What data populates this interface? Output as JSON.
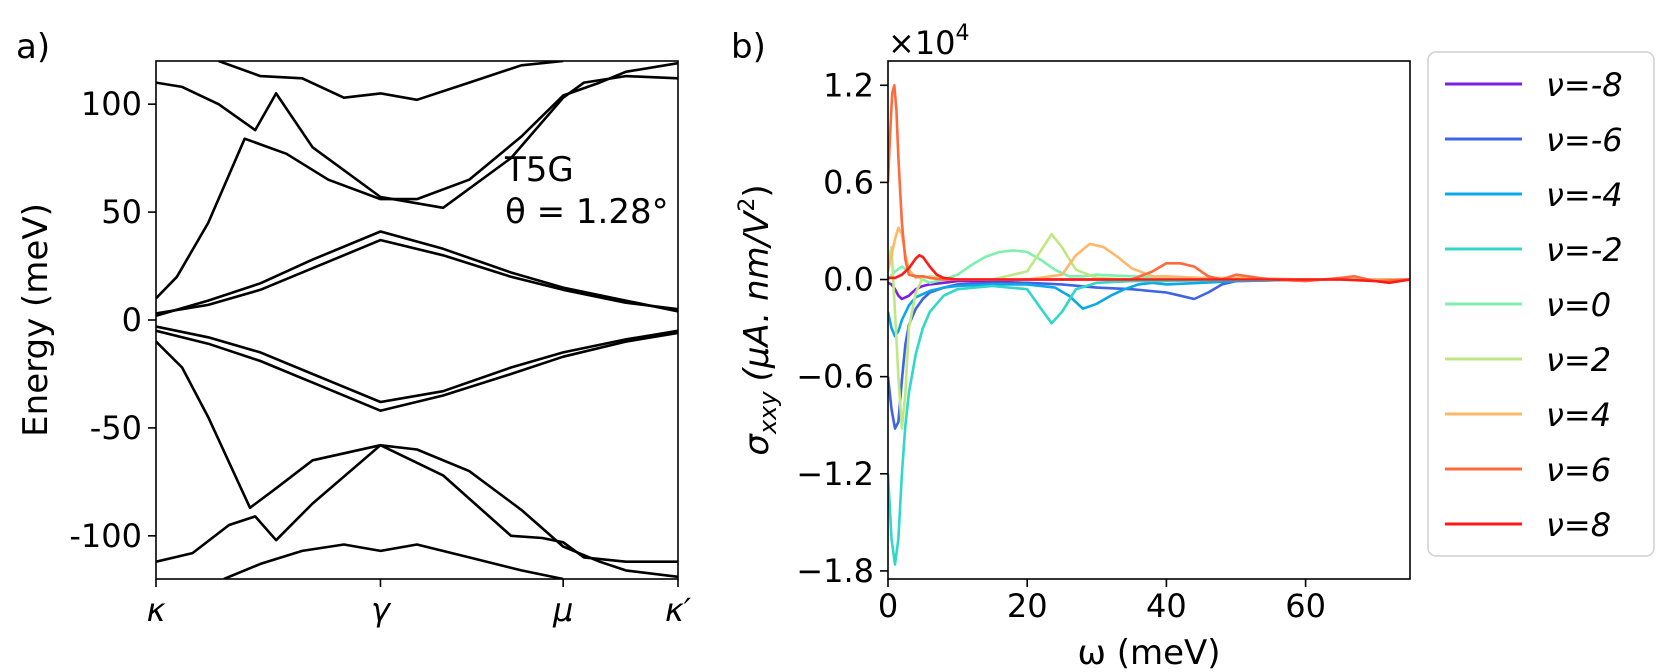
{
  "figure": {
    "panels": [
      "a)",
      "b)"
    ]
  },
  "chart_data": [
    {
      "type": "line",
      "panel": "a)",
      "title": "",
      "xlabel": "",
      "ylabel": "Energy (meV)",
      "ylim": [
        -120,
        120
      ],
      "yticks": [
        100,
        50,
        0,
        -50,
        -100
      ],
      "ytick_labels": [
        "100",
        "50",
        "0",
        "-50",
        "-100"
      ],
      "xticks": [
        0,
        0.43,
        0.78,
        1.0
      ],
      "xtick_labels": [
        "κ",
        "γ",
        "μ",
        "κ′"
      ],
      "annotation": {
        "line1": "T5G",
        "line2": "θ = 1.28°"
      },
      "series_description": "band structure (energy vs k-path)",
      "series": [
        {
          "name": "band+1",
          "x": [
            0,
            0.1,
            0.2,
            0.3,
            0.43,
            0.55,
            0.68,
            0.78,
            0.9,
            1.0
          ],
          "values": [
            3,
            7,
            14,
            24,
            37,
            30,
            20,
            14,
            8,
            5
          ]
        },
        {
          "name": "band+2",
          "x": [
            0,
            0.1,
            0.2,
            0.3,
            0.43,
            0.55,
            0.68,
            0.78,
            0.9,
            1.0
          ],
          "values": [
            2,
            9,
            17,
            28,
            41,
            33,
            22,
            15,
            9,
            4
          ]
        },
        {
          "name": "band+3",
          "x": [
            0,
            0.04,
            0.1,
            0.17,
            0.25,
            0.33,
            0.43,
            0.5,
            0.6,
            0.7,
            0.78,
            0.85,
            0.9,
            1.0
          ],
          "values": [
            10,
            20,
            45,
            84,
            77,
            65,
            56,
            56,
            65,
            85,
            104,
            110,
            115,
            119
          ]
        },
        {
          "name": "band+4",
          "x": [
            0,
            0.05,
            0.12,
            0.19,
            0.23,
            0.3,
            0.43,
            0.55,
            0.68,
            0.78,
            0.82,
            0.9,
            1.0
          ],
          "values": [
            110,
            108,
            100,
            88,
            105,
            80,
            57,
            52,
            75,
            103,
            110,
            113,
            112
          ]
        },
        {
          "name": "band+5",
          "x": [
            0.12,
            0.2,
            0.28,
            0.36,
            0.43,
            0.5,
            0.6,
            0.7,
            0.78
          ],
          "values": [
            120,
            113,
            112,
            103,
            105,
            102,
            110,
            118,
            120
          ]
        },
        {
          "name": "band-1",
          "x": [
            0,
            0.1,
            0.2,
            0.3,
            0.43,
            0.55,
            0.68,
            0.78,
            0.9,
            1.0
          ],
          "values": [
            -3,
            -8,
            -15,
            -25,
            -38,
            -33,
            -22,
            -15,
            -9,
            -5
          ]
        },
        {
          "name": "band-2",
          "x": [
            0,
            0.1,
            0.2,
            0.3,
            0.43,
            0.55,
            0.68,
            0.78,
            0.9,
            1.0
          ],
          "values": [
            -5,
            -11,
            -19,
            -29,
            -42,
            -35,
            -25,
            -17,
            -10,
            -6
          ]
        },
        {
          "name": "band-3",
          "x": [
            0,
            0.05,
            0.1,
            0.18,
            0.23,
            0.3,
            0.43,
            0.5,
            0.6,
            0.7,
            0.78,
            0.85,
            0.9,
            1.0
          ],
          "values": [
            -10,
            -22,
            -45,
            -87,
            -78,
            -65,
            -58,
            -60,
            -70,
            -88,
            -105,
            -112,
            -116,
            -119
          ]
        },
        {
          "name": "band-4",
          "x": [
            0,
            0.07,
            0.14,
            0.19,
            0.23,
            0.3,
            0.43,
            0.55,
            0.68,
            0.74,
            0.78,
            0.82,
            0.9,
            1.0
          ],
          "values": [
            -112,
            -108,
            -95,
            -91,
            -102,
            -85,
            -58,
            -72,
            -100,
            -101,
            -103,
            -110,
            -112,
            -112
          ]
        },
        {
          "name": "band-5",
          "x": [
            0.13,
            0.2,
            0.28,
            0.36,
            0.43,
            0.5,
            0.6,
            0.7,
            0.78
          ],
          "values": [
            -120,
            -113,
            -107,
            -104,
            -107,
            -104,
            -110,
            -116,
            -120
          ]
        }
      ]
    },
    {
      "type": "line",
      "panel": "b)",
      "title": "",
      "offset_text": "×10",
      "offset_exponent": "4",
      "xlabel": "ω (meV)",
      "ylabel_main": "σ",
      "ylabel_sub": "xxy",
      "ylabel_units": "(μA. nm/V",
      "ylabel_units_sup": "2",
      "ylabel_units_close": ")",
      "xlim": [
        0,
        75
      ],
      "ylim": [
        -1.85,
        1.35
      ],
      "xticks": [
        0,
        20,
        40,
        60
      ],
      "xtick_labels": [
        "0",
        "20",
        "40",
        "60"
      ],
      "yticks": [
        1.2,
        0.6,
        0.0,
        -0.6,
        -1.2,
        -1.8
      ],
      "ytick_labels": [
        "1.2",
        "0.6",
        "0.0",
        "−0.6",
        "−1.2",
        "−1.8"
      ],
      "legend_position": "outside-right",
      "series": [
        {
          "name": "ν=-8",
          "color": "#7b1fe0",
          "x": [
            0,
            0.5,
            1,
            1.5,
            2,
            3,
            4,
            5,
            6,
            8,
            10,
            15,
            20,
            25,
            30,
            40,
            50,
            60,
            70,
            75
          ],
          "values": [
            -0.02,
            -0.03,
            -0.06,
            -0.1,
            -0.12,
            -0.1,
            -0.06,
            -0.04,
            -0.03,
            -0.02,
            -0.01,
            -0.01,
            0,
            0,
            0,
            0,
            0,
            0,
            0,
            0
          ]
        },
        {
          "name": "ν=-6",
          "color": "#3f63e6",
          "x": [
            0,
            0.5,
            1,
            1.5,
            2,
            2.5,
            3,
            4,
            5,
            6,
            8,
            10,
            15,
            20,
            25,
            30,
            35,
            40,
            42,
            44,
            46,
            48,
            50,
            60,
            70,
            75
          ],
          "values": [
            -0.6,
            -0.8,
            -0.92,
            -0.88,
            -0.62,
            -0.4,
            -0.28,
            -0.18,
            -0.12,
            -0.08,
            -0.05,
            -0.03,
            -0.02,
            -0.02,
            -0.03,
            -0.05,
            -0.06,
            -0.08,
            -0.1,
            -0.12,
            -0.08,
            -0.03,
            -0.01,
            0,
            0,
            0
          ]
        },
        {
          "name": "ν=-4",
          "color": "#0aa8e8",
          "x": [
            0,
            0.5,
            1,
            1.5,
            2,
            3,
            4,
            6,
            8,
            10,
            15,
            20,
            24,
            26,
            28,
            30,
            32,
            34,
            36,
            38,
            40,
            45,
            50,
            60,
            70,
            75
          ],
          "values": [
            -0.2,
            -0.3,
            -0.35,
            -0.32,
            -0.25,
            -0.16,
            -0.11,
            -0.07,
            -0.05,
            -0.04,
            -0.03,
            -0.03,
            -0.05,
            -0.1,
            -0.18,
            -0.15,
            -0.1,
            -0.06,
            -0.03,
            -0.02,
            -0.03,
            -0.02,
            -0.01,
            0,
            0,
            0
          ]
        },
        {
          "name": "ν=-2",
          "color": "#2fd8c8",
          "x": [
            0,
            0.5,
            1,
            1.5,
            2,
            2.5,
            3,
            4,
            5,
            6,
            8,
            10,
            15,
            20,
            22,
            23.5,
            25,
            27,
            30,
            35,
            40,
            50,
            60,
            70,
            75
          ],
          "values": [
            -1.2,
            -1.6,
            -1.76,
            -1.6,
            -1.2,
            -0.9,
            -0.7,
            -0.46,
            -0.3,
            -0.2,
            -0.1,
            -0.06,
            -0.04,
            -0.06,
            -0.18,
            -0.27,
            -0.2,
            -0.06,
            -0.02,
            -0.01,
            -0.01,
            0,
            0,
            0,
            0
          ]
        },
        {
          "name": "ν=0",
          "color": "#7ff0b0",
          "x": [
            0,
            1,
            2,
            3,
            4,
            5,
            6,
            8,
            10,
            12,
            14,
            16,
            18,
            20,
            22,
            24,
            26,
            28,
            30,
            35,
            40,
            50,
            60,
            70,
            75
          ],
          "values": [
            0,
            0.05,
            0.08,
            0.05,
            0.02,
            0.0,
            -0.02,
            0.0,
            0.03,
            0.09,
            0.14,
            0.17,
            0.18,
            0.17,
            0.12,
            0.06,
            0.02,
            0.02,
            0.03,
            0.02,
            0.01,
            0,
            0,
            0,
            0
          ]
        },
        {
          "name": "ν=2",
          "color": "#bfe884",
          "x": [
            0,
            0.5,
            1,
            1.5,
            2,
            2.5,
            3,
            4,
            5,
            6,
            8,
            10,
            15,
            20,
            22,
            23.5,
            25,
            27,
            30,
            35,
            40,
            50,
            60,
            70,
            75
          ],
          "values": [
            0.1,
            0.2,
            -0.2,
            -0.6,
            -0.92,
            -0.7,
            -0.3,
            -0.08,
            0.01,
            0.02,
            0.01,
            0.0,
            0.0,
            0.05,
            0.18,
            0.28,
            0.2,
            0.06,
            0.01,
            0.0,
            0.0,
            0,
            0,
            0,
            0
          ]
        },
        {
          "name": "ν=4",
          "color": "#ffb86b",
          "x": [
            0,
            0.5,
            1,
            1.5,
            2,
            2.5,
            3,
            4,
            5,
            6,
            8,
            10,
            15,
            20,
            25,
            27,
            29,
            31,
            33,
            35,
            38,
            40,
            45,
            50,
            60,
            70,
            75
          ],
          "values": [
            0.05,
            0.15,
            0.25,
            0.32,
            0.28,
            0.15,
            0.06,
            0.01,
            0.02,
            0.01,
            0.0,
            0.0,
            0.0,
            0.0,
            0.03,
            0.15,
            0.22,
            0.2,
            0.14,
            0.07,
            0.02,
            0.02,
            0.01,
            0.01,
            0.0,
            0.0,
            0.0
          ]
        },
        {
          "name": "ν=6",
          "color": "#ff6a3c",
          "x": [
            0,
            0.3,
            0.6,
            0.9,
            1.2,
            1.5,
            2,
            2.5,
            3,
            4,
            5,
            6,
            8,
            10,
            15,
            20,
            30,
            35,
            38,
            40,
            42,
            44,
            46,
            48,
            50,
            55,
            60,
            65,
            67,
            70,
            75
          ],
          "values": [
            0.6,
            0.9,
            1.15,
            1.2,
            1.05,
            0.75,
            0.35,
            0.12,
            0.03,
            0.02,
            0.02,
            0.01,
            0.0,
            0.0,
            0.0,
            0.0,
            0.0,
            0.0,
            0.05,
            0.1,
            0.1,
            0.08,
            0.02,
            0.0,
            0.03,
            0.0,
            -0.01,
            0.01,
            0.02,
            -0.01,
            0.0
          ]
        },
        {
          "name": "ν=8",
          "color": "#ff1a1a",
          "x": [
            0,
            1,
            2,
            3,
            4,
            4.5,
            5,
            6,
            7,
            8,
            10,
            15,
            20,
            30,
            40,
            50,
            60,
            65,
            70,
            72,
            75
          ],
          "values": [
            0.01,
            0.01,
            0.03,
            0.07,
            0.13,
            0.15,
            0.14,
            0.08,
            0.03,
            0.01,
            0.0,
            0.0,
            0.0,
            0.0,
            0.0,
            0.0,
            0.0,
            0.0,
            -0.01,
            -0.02,
            0.0
          ]
        }
      ]
    }
  ]
}
